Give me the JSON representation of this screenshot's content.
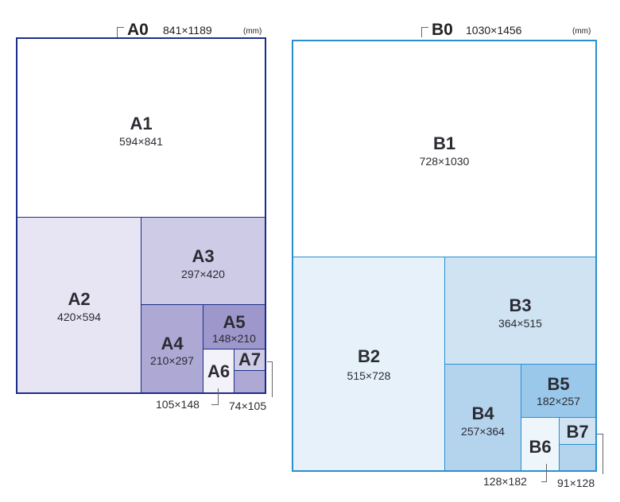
{
  "left": {
    "header": {
      "name": "A0",
      "dims": "841×1189",
      "unit": "(mm)"
    },
    "colors": {
      "border": "#1b2f8a",
      "a1": "#ffffff",
      "a2": "#e7e5f3",
      "a3": "#cdcbe6",
      "a4": "#ada9d4",
      "a5": "#9e97cb",
      "a6": "#f3f2f9",
      "a7": "#cdcbe6"
    },
    "sheets": {
      "a1": {
        "name": "A1",
        "dims": "594×841"
      },
      "a2": {
        "name": "A2",
        "dims": "420×594"
      },
      "a3": {
        "name": "A3",
        "dims": "297×420"
      },
      "a4": {
        "name": "A4",
        "dims": "210×297"
      },
      "a5": {
        "name": "A5",
        "dims": "148×210"
      },
      "a6": {
        "name": "A6",
        "dims": "105×148"
      },
      "a7": {
        "name": "A7",
        "dims": "74×105"
      }
    }
  },
  "right": {
    "header": {
      "name": "B0",
      "dims": "1030×1456",
      "unit": "(mm)"
    },
    "colors": {
      "border": "#2a8fd0",
      "b1": "#ffffff",
      "b2": "#e6f1fa",
      "b3": "#cfe3f3",
      "b4": "#b4d4ee",
      "b5": "#99c8ea",
      "b6": "#eef5fb",
      "b7": "#cfe3f3"
    },
    "sheets": {
      "b1": {
        "name": "B1",
        "dims": "728×1030"
      },
      "b2": {
        "name": "B2",
        "dims": "515×728"
      },
      "b3": {
        "name": "B3",
        "dims": "364×515"
      },
      "b4": {
        "name": "B4",
        "dims": "257×364"
      },
      "b5": {
        "name": "B5",
        "dims": "182×257"
      },
      "b6": {
        "name": "B6",
        "dims": "128×182"
      },
      "b7": {
        "name": "B7",
        "dims": "91×128"
      }
    }
  }
}
